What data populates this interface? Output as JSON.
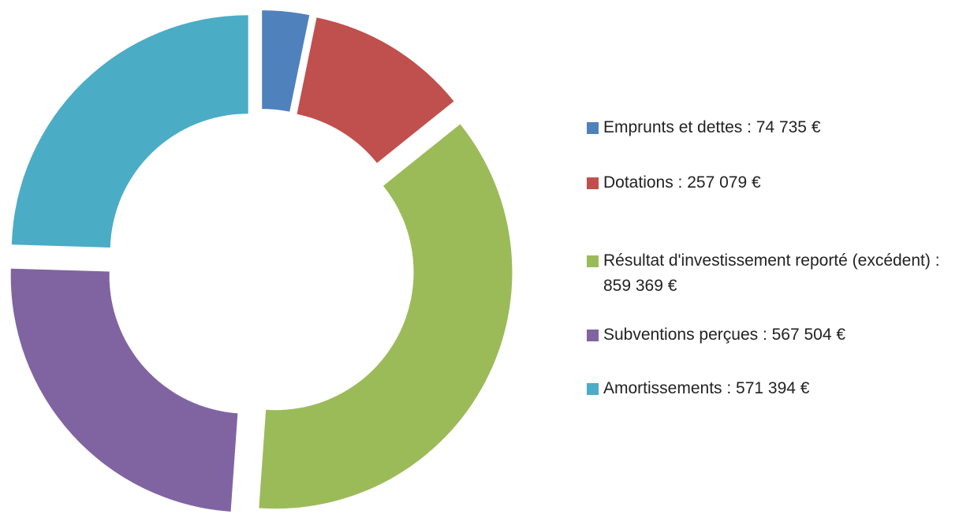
{
  "chart_data": {
    "type": "donut",
    "categories": [
      "Emprunts et dettes : 74 735 €",
      "Dotations : 257 079 €",
      "Résultat d'investissement reporté (excédent) : 859 369 €",
      "Subventions perçues : 567 504 €",
      "Amortissements : 571 394 €"
    ],
    "values": [
      74735,
      257079,
      859369,
      567504,
      571394
    ],
    "colors": [
      "#4f81bd",
      "#c0504d",
      "#9bbb59",
      "#8064a2",
      "#4bacc6"
    ],
    "legend": "right"
  }
}
